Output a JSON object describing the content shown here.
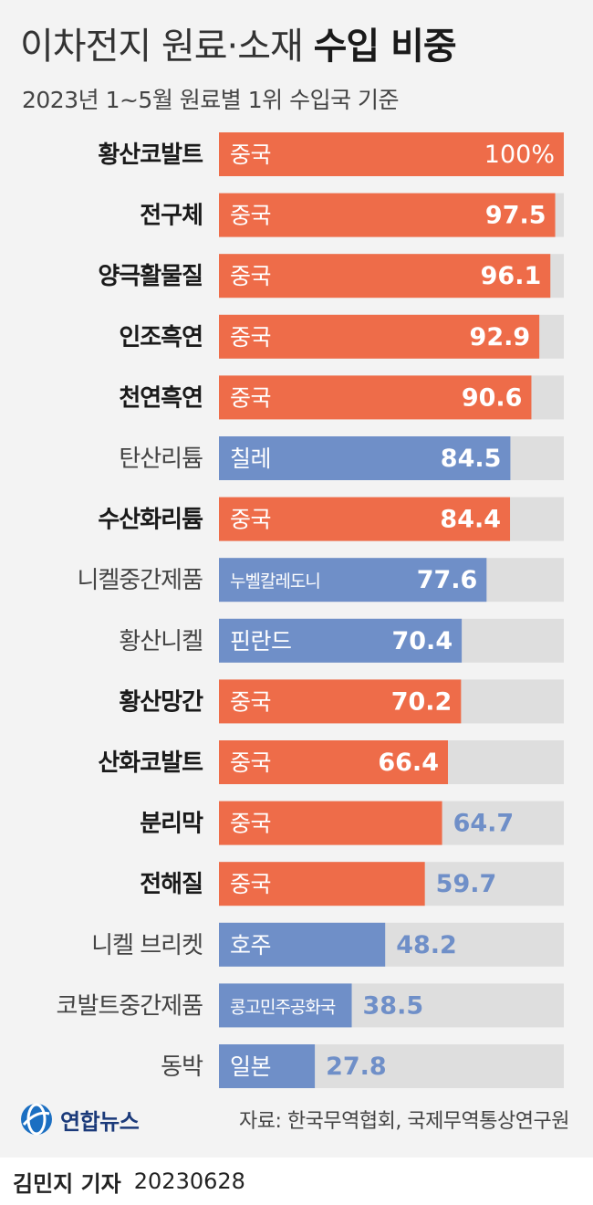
{
  "title": {
    "light": "이차전지 원료·소재",
    "bold": "수입 비중"
  },
  "subtitle": "2023년 1~5월 원료별 1위 수입국 기준",
  "chart_data": {
    "type": "bar",
    "orientation": "horizontal",
    "xlim": [
      0,
      100
    ],
    "categories": [
      "황산코발트",
      "전구체",
      "양극활물질",
      "인조흑연",
      "천연흑연",
      "탄산리튬",
      "수산화리튬",
      "니켈중간제품",
      "황산니켈",
      "황산망간",
      "산화코발트",
      "분리막",
      "전해질",
      "니켈 브리켓",
      "코발트중간제품",
      "동박"
    ],
    "countries": [
      "중국",
      "중국",
      "중국",
      "중국",
      "중국",
      "칠레",
      "중국",
      "누벨칼레도니",
      "핀란드",
      "중국",
      "중국",
      "중국",
      "중국",
      "호주",
      "콩고민주공화국",
      "일본"
    ],
    "value_labels": [
      "100%",
      "97.5",
      "96.1",
      "92.9",
      "90.6",
      "84.5",
      "84.4",
      "77.6",
      "70.4",
      "70.2",
      "66.4",
      "64.7",
      "59.7",
      "48.2",
      "38.5",
      "27.8"
    ],
    "values": [
      100,
      97.5,
      96.1,
      92.9,
      90.6,
      84.5,
      84.4,
      77.6,
      70.4,
      70.2,
      66.4,
      64.7,
      59.7,
      48.2,
      38.5,
      27.8
    ],
    "colors": {
      "china": "#ee6c49",
      "other": "#6f8fc8",
      "track": "#dedede",
      "outside_label": "#6f8fc8"
    }
  },
  "footer": {
    "logo_text": "연합뉴스",
    "source": "자료: 한국무역협회, 국제무역통상연구원",
    "author": "김민지 기자",
    "date": "20230628"
  }
}
